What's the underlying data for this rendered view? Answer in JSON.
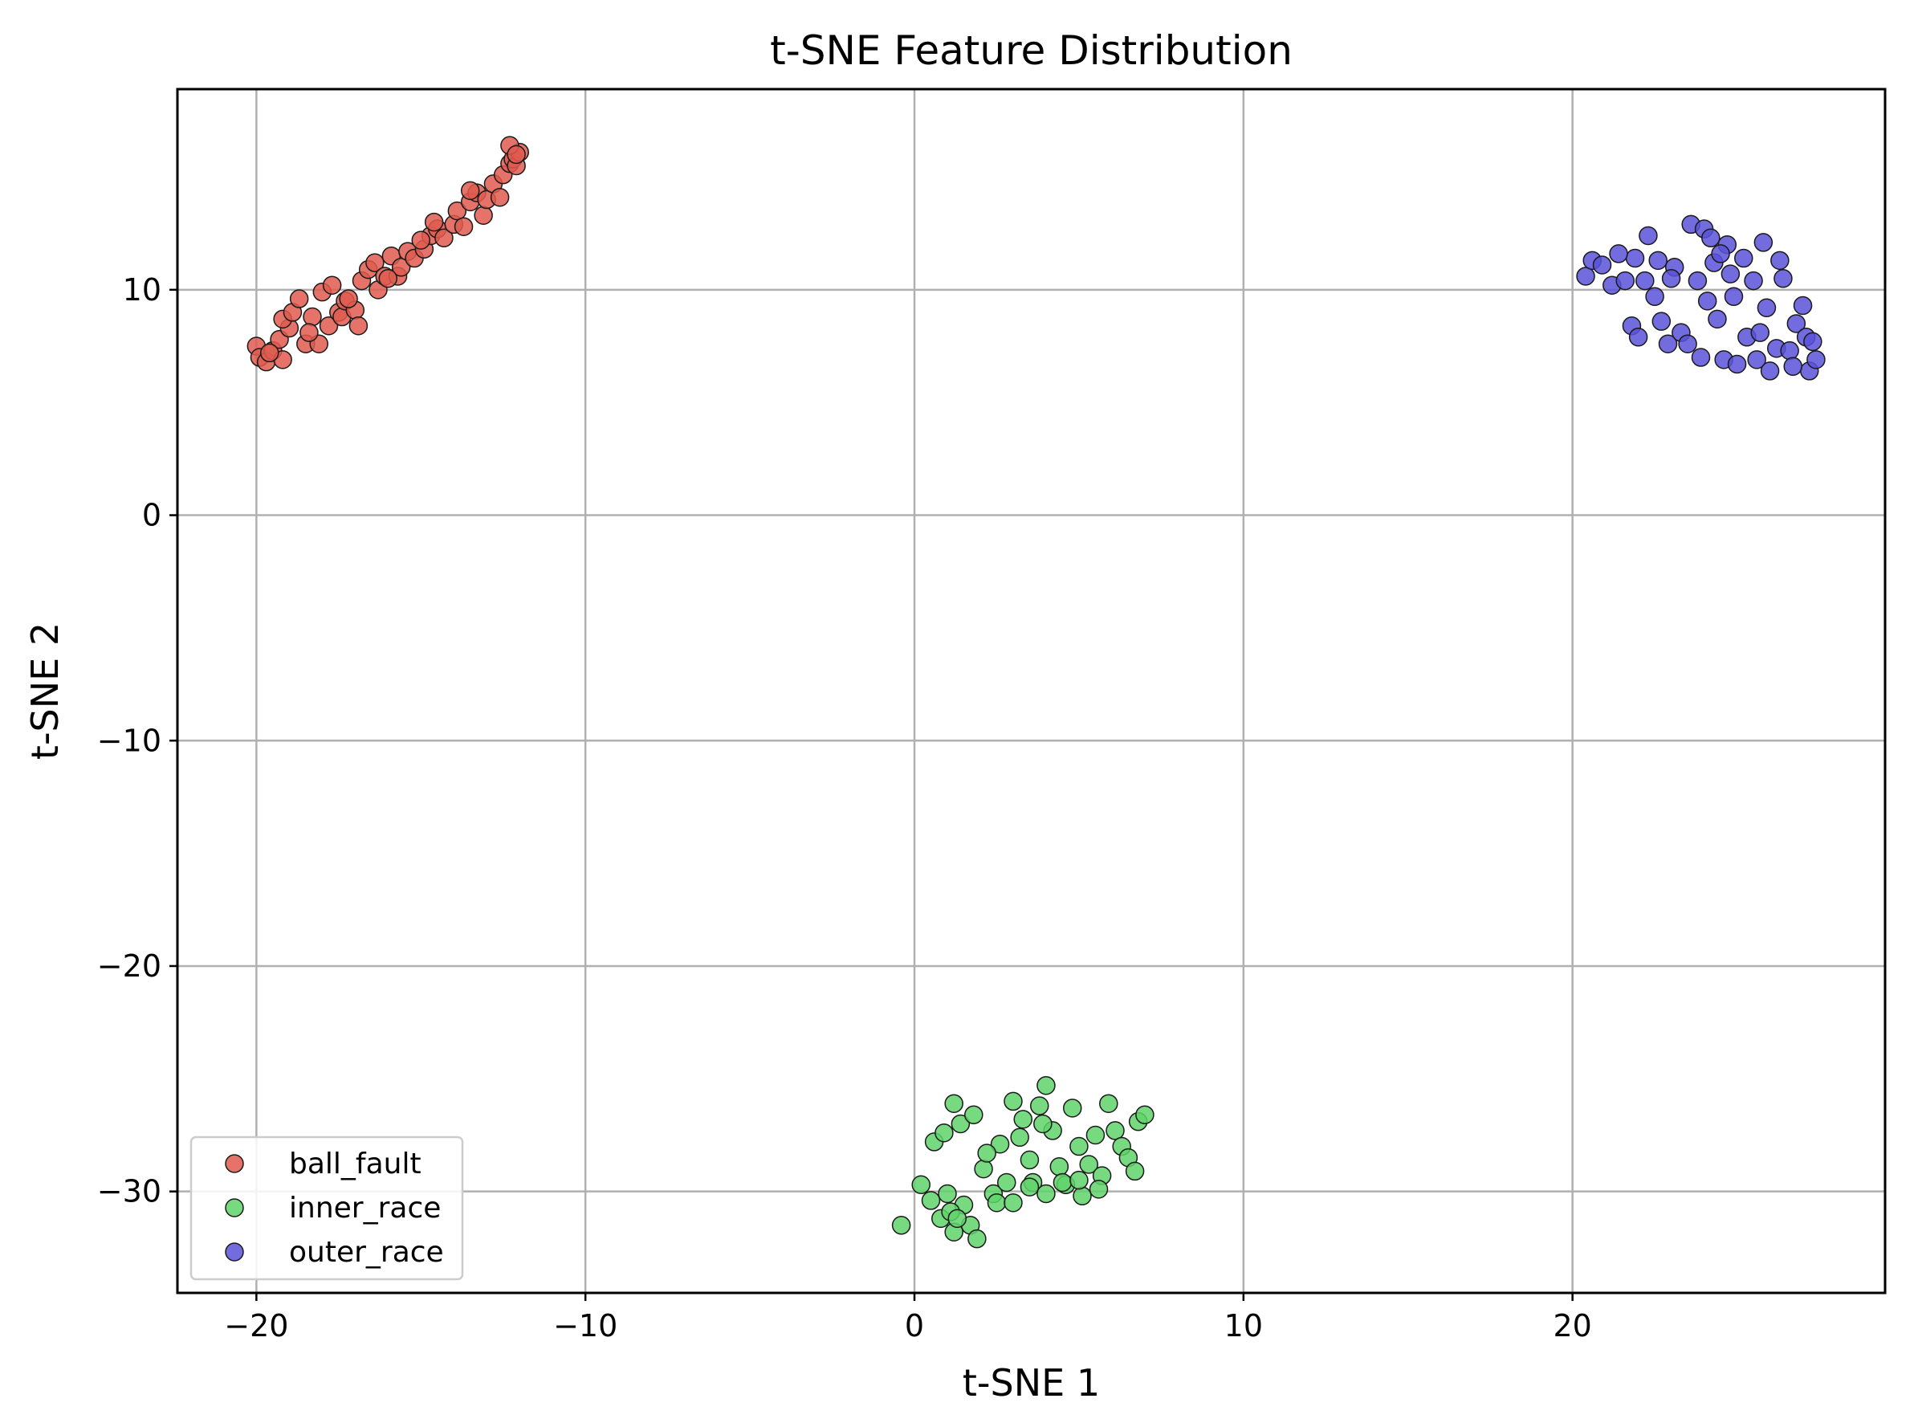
{
  "chart_data": {
    "type": "scatter",
    "title": "t-SNE Feature Distribution",
    "xlabel": "t-SNE 1",
    "ylabel": "t-SNE 2",
    "xlim": [
      -22.4,
      29.5
    ],
    "ylim": [
      -34.5,
      18.9
    ],
    "xticks": [
      -20,
      -10,
      0,
      10,
      20
    ],
    "xtick_labels": [
      "−20",
      "−10",
      "0",
      "10",
      "20"
    ],
    "yticks": [
      10,
      0,
      -10,
      -20,
      -30
    ],
    "ytick_labels": [
      "10",
      "0",
      "−10",
      "−20",
      "−30"
    ],
    "grid": true,
    "legend_position": "lower-left",
    "series": [
      {
        "name": "ball_fault",
        "color": "#e05a4f",
        "points": [
          [
            -20.0,
            7.5
          ],
          [
            -19.9,
            7.0
          ],
          [
            -19.7,
            6.8
          ],
          [
            -19.5,
            7.3
          ],
          [
            -19.3,
            7.8
          ],
          [
            -19.2,
            6.9
          ],
          [
            -19.0,
            8.3
          ],
          [
            -19.2,
            8.7
          ],
          [
            -18.9,
            9.0
          ],
          [
            -18.7,
            9.6
          ],
          [
            -18.5,
            7.6
          ],
          [
            -18.3,
            8.8
          ],
          [
            -18.1,
            7.6
          ],
          [
            -18.0,
            9.9
          ],
          [
            -17.8,
            8.4
          ],
          [
            -17.7,
            10.2
          ],
          [
            -17.5,
            9.0
          ],
          [
            -17.4,
            8.8
          ],
          [
            -17.3,
            9.5
          ],
          [
            -17.0,
            9.1
          ],
          [
            -16.9,
            8.4
          ],
          [
            -16.8,
            10.4
          ],
          [
            -16.6,
            10.9
          ],
          [
            -16.4,
            11.2
          ],
          [
            -16.3,
            10.0
          ],
          [
            -16.1,
            10.6
          ],
          [
            -15.9,
            11.5
          ],
          [
            -15.7,
            10.6
          ],
          [
            -15.6,
            11.0
          ],
          [
            -15.4,
            11.7
          ],
          [
            -15.2,
            11.4
          ],
          [
            -14.9,
            11.8
          ],
          [
            -14.7,
            12.4
          ],
          [
            -14.5,
            12.7
          ],
          [
            -14.3,
            12.3
          ],
          [
            -14.0,
            12.9
          ],
          [
            -13.9,
            13.5
          ],
          [
            -13.7,
            12.8
          ],
          [
            -13.5,
            13.9
          ],
          [
            -13.3,
            14.3
          ],
          [
            -13.1,
            13.3
          ],
          [
            -13.0,
            14.0
          ],
          [
            -12.8,
            14.7
          ],
          [
            -12.6,
            14.1
          ],
          [
            -12.5,
            15.1
          ],
          [
            -12.3,
            15.6
          ],
          [
            -12.2,
            15.8
          ],
          [
            -12.1,
            15.5
          ],
          [
            -12.0,
            16.1
          ],
          [
            -12.3,
            16.4
          ],
          [
            -12.1,
            16.0
          ],
          [
            -13.5,
            14.4
          ],
          [
            -14.6,
            13.0
          ],
          [
            -15.0,
            12.2
          ],
          [
            -16.0,
            10.5
          ],
          [
            -17.2,
            9.6
          ],
          [
            -18.4,
            8.1
          ],
          [
            -19.6,
            7.2
          ]
        ]
      },
      {
        "name": "inner_race",
        "color": "#5fd36a",
        "points": [
          [
            -0.4,
            -31.5
          ],
          [
            0.2,
            -29.7
          ],
          [
            0.5,
            -30.4
          ],
          [
            0.8,
            -31.2
          ],
          [
            1.0,
            -30.1
          ],
          [
            1.2,
            -31.8
          ],
          [
            1.5,
            -30.6
          ],
          [
            1.7,
            -31.5
          ],
          [
            1.9,
            -32.1
          ],
          [
            1.1,
            -30.9
          ],
          [
            0.6,
            -27.8
          ],
          [
            0.9,
            -27.4
          ],
          [
            1.2,
            -26.1
          ],
          [
            1.4,
            -27.0
          ],
          [
            1.8,
            -26.6
          ],
          [
            2.1,
            -29.0
          ],
          [
            2.4,
            -30.1
          ],
          [
            2.6,
            -27.9
          ],
          [
            2.8,
            -29.6
          ],
          [
            3.0,
            -26.0
          ],
          [
            3.2,
            -27.6
          ],
          [
            3.3,
            -26.8
          ],
          [
            3.5,
            -28.6
          ],
          [
            3.6,
            -29.6
          ],
          [
            3.8,
            -26.2
          ],
          [
            4.0,
            -25.3
          ],
          [
            4.2,
            -27.3
          ],
          [
            4.4,
            -28.9
          ],
          [
            4.6,
            -29.7
          ],
          [
            4.8,
            -26.3
          ],
          [
            5.0,
            -28.0
          ],
          [
            5.1,
            -30.2
          ],
          [
            5.3,
            -28.8
          ],
          [
            5.5,
            -27.5
          ],
          [
            5.7,
            -29.3
          ],
          [
            5.9,
            -26.1
          ],
          [
            6.1,
            -27.3
          ],
          [
            6.3,
            -28.0
          ],
          [
            6.5,
            -28.5
          ],
          [
            6.7,
            -29.1
          ],
          [
            6.8,
            -26.9
          ],
          [
            7.0,
            -26.6
          ],
          [
            2.5,
            -30.5
          ],
          [
            3.0,
            -30.5
          ],
          [
            3.5,
            -29.8
          ],
          [
            4.0,
            -30.1
          ],
          [
            4.5,
            -29.6
          ],
          [
            5.0,
            -29.5
          ],
          [
            1.3,
            -31.2
          ],
          [
            2.2,
            -28.3
          ],
          [
            3.9,
            -27.0
          ],
          [
            5.6,
            -29.9
          ]
        ]
      },
      {
        "name": "outer_race",
        "color": "#5b52d9",
        "points": [
          [
            20.4,
            10.6
          ],
          [
            20.6,
            11.3
          ],
          [
            20.9,
            11.1
          ],
          [
            21.2,
            10.2
          ],
          [
            21.6,
            10.4
          ],
          [
            21.8,
            8.4
          ],
          [
            21.9,
            11.4
          ],
          [
            22.0,
            7.9
          ],
          [
            22.2,
            10.4
          ],
          [
            22.3,
            12.4
          ],
          [
            22.5,
            9.7
          ],
          [
            22.7,
            8.6
          ],
          [
            22.9,
            7.6
          ],
          [
            23.1,
            11.0
          ],
          [
            23.3,
            8.1
          ],
          [
            23.5,
            7.6
          ],
          [
            23.6,
            12.9
          ],
          [
            23.8,
            10.4
          ],
          [
            24.0,
            12.7
          ],
          [
            24.1,
            9.5
          ],
          [
            24.2,
            12.3
          ],
          [
            24.3,
            11.2
          ],
          [
            24.4,
            8.7
          ],
          [
            24.6,
            6.9
          ],
          [
            24.7,
            12.0
          ],
          [
            24.8,
            10.7
          ],
          [
            24.9,
            9.7
          ],
          [
            25.0,
            6.7
          ],
          [
            25.2,
            11.4
          ],
          [
            25.3,
            7.9
          ],
          [
            25.5,
            10.4
          ],
          [
            25.6,
            6.9
          ],
          [
            25.8,
            12.1
          ],
          [
            25.9,
            9.2
          ],
          [
            26.0,
            6.4
          ],
          [
            26.2,
            7.4
          ],
          [
            26.3,
            11.3
          ],
          [
            26.4,
            10.5
          ],
          [
            26.6,
            7.3
          ],
          [
            26.8,
            8.5
          ],
          [
            27.0,
            9.3
          ],
          [
            27.1,
            7.9
          ],
          [
            27.2,
            6.4
          ],
          [
            27.3,
            7.7
          ],
          [
            27.4,
            6.9
          ],
          [
            23.0,
            10.5
          ],
          [
            24.5,
            11.6
          ],
          [
            25.7,
            8.1
          ],
          [
            22.6,
            11.3
          ],
          [
            26.7,
            6.6
          ],
          [
            21.4,
            11.6
          ],
          [
            23.9,
            7.0
          ]
        ]
      }
    ]
  }
}
